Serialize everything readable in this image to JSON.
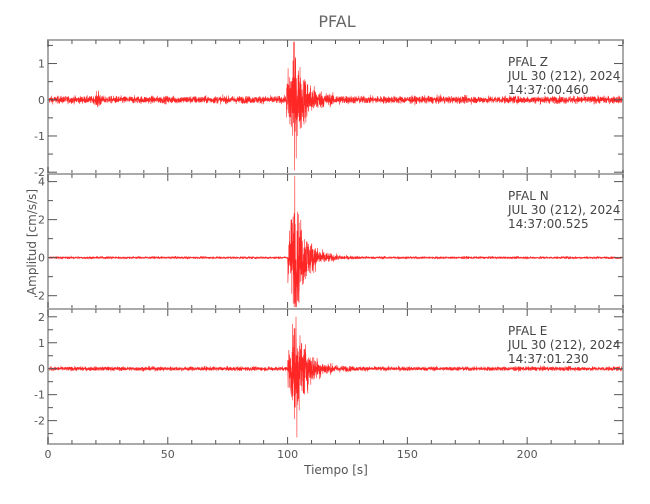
{
  "chart_data": {
    "type": "line",
    "title": "PFAL",
    "xlabel": "Tiempo [s]",
    "ylabel": "Amplitud [cm/s/s]",
    "xlim": [
      0,
      240
    ],
    "xticks": [
      0,
      50,
      100,
      150,
      200
    ],
    "xtick_labels": [
      "0",
      "50",
      "100",
      "150",
      "200"
    ],
    "line_color": "#ff0000",
    "axis_color": "#aaaaaa",
    "grid": false,
    "panels": [
      {
        "station": "PFAL",
        "component": "Z",
        "info": [
          "PFAL   Z",
          "JUL 30 (212), 2024",
          "14:37:00.460"
        ],
        "ylim": [
          -2.05,
          1.65
        ],
        "yticks": [
          -2,
          -1,
          0,
          1
        ],
        "ytick_labels": [
          "-2",
          "-1",
          "0",
          "1"
        ],
        "noise_level": 0.05,
        "onset_s": 99.5,
        "peak_time_s": 102.5,
        "peak_max": 1.6,
        "peak_min": -1.95,
        "minor_burst_s": 21,
        "minor_burst_amp": 0.25
      },
      {
        "station": "PFAL",
        "component": "N",
        "info": [
          "PFAL   N",
          "JUL 30 (212), 2024",
          "14:37:00.525"
        ],
        "ylim": [
          -2.7,
          4.4
        ],
        "yticks": [
          -2,
          0,
          2,
          4
        ],
        "ytick_labels": [
          "-2",
          "0",
          "2",
          "4"
        ],
        "noise_level": 0.03,
        "onset_s": 100,
        "peak_time_s": 103,
        "peak_max": 4.3,
        "peak_min": -2.6
      },
      {
        "station": "PFAL",
        "component": "E",
        "info": [
          "PFAL   E",
          "JUL 30 (212), 2024",
          "14:37:01.230"
        ],
        "ylim": [
          -2.9,
          2.3
        ],
        "yticks": [
          -2,
          -1,
          0,
          1,
          2
        ],
        "ytick_labels": [
          "-2",
          "-1",
          "0",
          "1",
          "2"
        ],
        "noise_level": 0.04,
        "onset_s": 100,
        "peak_time_s": 103.5,
        "peak_max": 2.0,
        "peak_min": -2.65
      }
    ]
  }
}
